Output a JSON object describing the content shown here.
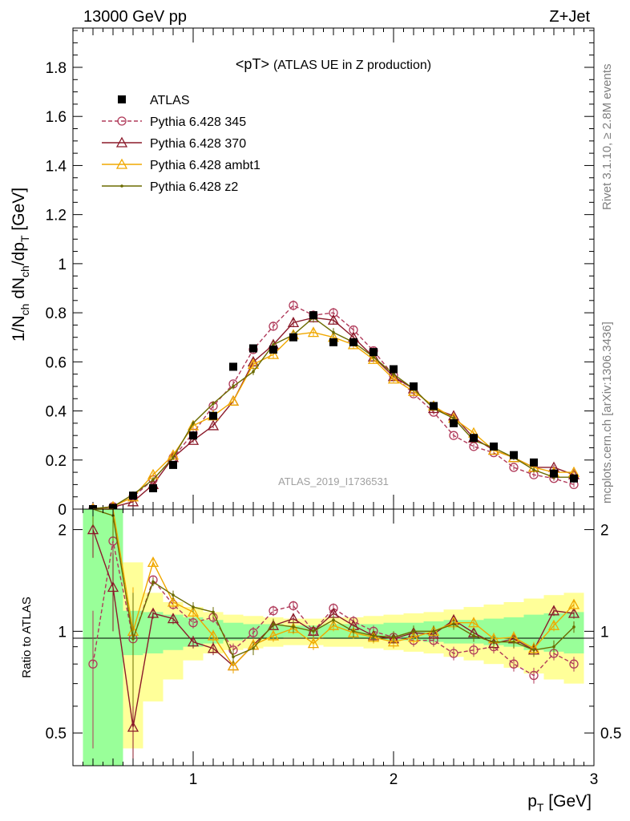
{
  "header": {
    "beam": "13000 GeV pp",
    "process": "Z+Jet",
    "title_main": "<pT>",
    "title_sub": "(ATLAS UE in Z production)",
    "analysis": "ATLAS_2019_I1736531",
    "side_top": "Rivet 3.1.10, ≥ 2.8M events",
    "side_bottom": "mcplots.cern.ch [arXiv:1306.3436]"
  },
  "chart_data": {
    "type": "line",
    "x_axis_label": "pT [GeV]",
    "xlim": [
      0.4,
      3.0
    ],
    "x_ticks": [
      "1",
      "2",
      "3"
    ],
    "y_axis_label": "1/Nch dNch/dpT [GeV]",
    "ylim": [
      0,
      1.96
    ],
    "y_ticks": [
      "0",
      "0.2",
      "0.4",
      "0.6",
      "0.8",
      "1",
      "1.2",
      "1.4",
      "1.6",
      "1.8"
    ],
    "ratio_axis_label": "Ratio to ATLAS",
    "ratio_ylim": [
      0.4,
      2.3
    ],
    "ratio_ticks": [
      "0.5",
      "1",
      "2"
    ],
    "x": [
      0.5,
      0.6,
      0.7,
      0.8,
      0.9,
      1.0,
      1.1,
      1.2,
      1.3,
      1.4,
      1.5,
      1.6,
      1.7,
      1.8,
      1.9,
      2.0,
      2.1,
      2.2,
      2.3,
      2.4,
      2.5,
      2.6,
      2.7,
      2.8,
      2.9
    ],
    "legend": [
      "ATLAS",
      "Pythia 6.428 345",
      "Pythia 6.428 370",
      "Pythia 6.428 ambt1",
      "Pythia 6.428 z2"
    ],
    "data": {
      "name": "ATLAS",
      "values": [
        0.0,
        0.005,
        0.055,
        0.085,
        0.18,
        0.3,
        0.38,
        0.58,
        0.655,
        0.65,
        0.7,
        0.79,
        0.68,
        0.68,
        0.64,
        0.57,
        0.5,
        0.42,
        0.35,
        0.29,
        0.255,
        0.22,
        0.19,
        0.145,
        0.125
      ]
    },
    "series": [
      {
        "name": "Pythia 6.428 345",
        "color": "#b03a5a",
        "dash": true,
        "marker": "circle",
        "values": [
          0.0,
          0.01,
          0.05,
          0.12,
          0.21,
          0.31,
          0.42,
          0.51,
          0.65,
          0.745,
          0.83,
          0.79,
          0.8,
          0.73,
          0.645,
          0.545,
          0.47,
          0.395,
          0.3,
          0.255,
          0.23,
          0.17,
          0.14,
          0.125,
          0.1
        ],
        "ratio": [
          0.8,
          1.85,
          0.95,
          1.42,
          1.2,
          1.06,
          1.1,
          0.88,
          0.99,
          1.15,
          1.19,
          1.0,
          1.17,
          1.07,
          1.0,
          0.96,
          0.94,
          0.94,
          0.86,
          0.88,
          0.9,
          0.8,
          0.74,
          0.86,
          0.8
        ]
      },
      {
        "name": "Pythia 6.428 370",
        "color": "#8b1a2a",
        "dash": false,
        "marker": "triangle",
        "values": [
          0.002,
          0.008,
          0.03,
          0.1,
          0.21,
          0.28,
          0.34,
          0.44,
          0.6,
          0.67,
          0.76,
          0.78,
          0.77,
          0.7,
          0.62,
          0.54,
          0.49,
          0.41,
          0.38,
          0.29,
          0.24,
          0.21,
          0.17,
          0.17,
          0.14
        ],
        "ratio": [
          2.0,
          1.35,
          0.52,
          1.13,
          1.09,
          0.93,
          0.89,
          0.79,
          0.91,
          1.04,
          1.09,
          1.0,
          1.13,
          1.04,
          0.97,
          0.95,
          0.99,
          0.98,
          1.08,
          0.99,
          0.92,
          0.95,
          0.88,
          1.15,
          1.13
        ]
      },
      {
        "name": "Pythia 6.428 ambt1",
        "color": "#f0a800",
        "dash": false,
        "marker": "triangle",
        "values": [
          0.001,
          0.01,
          0.05,
          0.14,
          0.22,
          0.34,
          0.38,
          0.44,
          0.59,
          0.63,
          0.71,
          0.72,
          0.7,
          0.67,
          0.61,
          0.53,
          0.48,
          0.42,
          0.37,
          0.31,
          0.24,
          0.21,
          0.17,
          0.15,
          0.15
        ],
        "ratio": [
          2.6,
          2.4,
          1.0,
          1.6,
          1.22,
          1.14,
          0.97,
          0.79,
          0.91,
          0.97,
          1.02,
          0.92,
          1.04,
          0.99,
          0.96,
          0.93,
          0.96,
          1.0,
          1.06,
          1.06,
          0.95,
          0.96,
          0.89,
          1.04,
          1.2
        ]
      },
      {
        "name": "Pythia 6.428 z2",
        "color": "#6b6b00",
        "dash": false,
        "marker": "dot",
        "values": [
          0.002,
          0.01,
          0.06,
          0.12,
          0.21,
          0.35,
          0.43,
          0.5,
          0.56,
          0.67,
          0.71,
          0.78,
          0.72,
          0.68,
          0.62,
          0.55,
          0.49,
          0.41,
          0.37,
          0.28,
          0.25,
          0.21,
          0.16,
          0.13,
          0.13
        ],
        "ratio": [
          2.4,
          2.2,
          0.95,
          1.4,
          1.28,
          1.18,
          1.14,
          0.84,
          0.89,
          1.05,
          1.03,
          1.0,
          1.08,
          1.0,
          0.97,
          0.96,
          1.0,
          1.0,
          1.05,
          0.97,
          0.93,
          0.93,
          0.88,
          0.9,
          1.03
        ]
      }
    ],
    "band_inner": [
      [
        0.3,
        2.6
      ],
      [
        0.3,
        2.6
      ],
      [
        0.85,
        1.15
      ],
      [
        0.86,
        1.14
      ],
      [
        0.88,
        1.12
      ],
      [
        0.9,
        1.1
      ],
      [
        0.92,
        1.08
      ],
      [
        0.94,
        1.06
      ],
      [
        0.95,
        1.05
      ],
      [
        0.95,
        1.05
      ],
      [
        0.96,
        1.04
      ],
      [
        0.96,
        1.04
      ],
      [
        0.95,
        1.05
      ],
      [
        0.95,
        1.05
      ],
      [
        0.95,
        1.05
      ],
      [
        0.94,
        1.06
      ],
      [
        0.94,
        1.06
      ],
      [
        0.93,
        1.07
      ],
      [
        0.92,
        1.08
      ],
      [
        0.92,
        1.08
      ],
      [
        0.91,
        1.09
      ],
      [
        0.9,
        1.1
      ],
      [
        0.88,
        1.12
      ],
      [
        0.87,
        1.13
      ],
      [
        0.86,
        1.14
      ]
    ],
    "band_outer": [
      [
        0.3,
        2.6
      ],
      [
        0.3,
        2.6
      ],
      [
        0.45,
        1.6
      ],
      [
        0.62,
        1.3
      ],
      [
        0.72,
        1.22
      ],
      [
        0.82,
        1.18
      ],
      [
        0.86,
        1.14
      ],
      [
        0.88,
        1.12
      ],
      [
        0.89,
        1.11
      ],
      [
        0.9,
        1.1
      ],
      [
        0.91,
        1.09
      ],
      [
        0.91,
        1.09
      ],
      [
        0.9,
        1.1
      ],
      [
        0.9,
        1.1
      ],
      [
        0.89,
        1.11
      ],
      [
        0.88,
        1.12
      ],
      [
        0.87,
        1.13
      ],
      [
        0.86,
        1.14
      ],
      [
        0.84,
        1.16
      ],
      [
        0.82,
        1.18
      ],
      [
        0.8,
        1.2
      ],
      [
        0.78,
        1.22
      ],
      [
        0.75,
        1.25
      ],
      [
        0.72,
        1.28
      ],
      [
        0.7,
        1.3
      ]
    ]
  }
}
